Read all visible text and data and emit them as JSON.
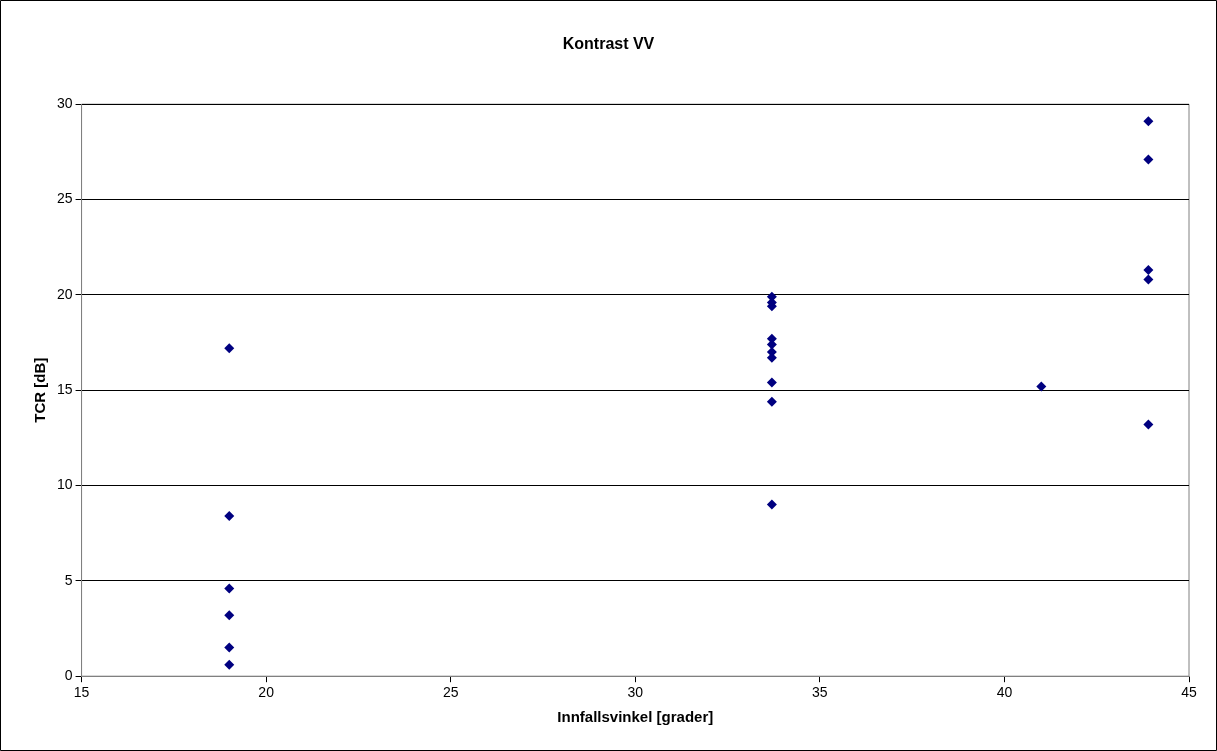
{
  "chart_data": {
    "type": "scatter",
    "title": "Kontrast VV",
    "xlabel": "Innfallsvinkel [grader]",
    "ylabel": "TCR [dB]",
    "x": [
      19,
      19,
      19,
      19,
      19,
      19,
      33.7,
      33.7,
      33.7,
      33.7,
      33.7,
      33.7,
      33.7,
      33.7,
      33.7,
      33.7,
      41,
      43.9,
      43.9,
      43.9,
      43.9,
      43.9
    ],
    "values": [
      17.2,
      8.4,
      4.6,
      3.2,
      1.5,
      0.6,
      19.9,
      19.6,
      19.4,
      17.7,
      17.4,
      17,
      16.7,
      15.4,
      14.4,
      9,
      15.2,
      29.1,
      27.1,
      21.3,
      20.8,
      13.2
    ],
    "color": "#000080",
    "marker": "diamond",
    "grid": "y",
    "legend": false,
    "xlim": [
      15,
      45
    ],
    "xticks": [
      15,
      20,
      25,
      30,
      35,
      40,
      45
    ],
    "ylim": [
      0,
      30
    ],
    "yticks": [
      0,
      5,
      10,
      15,
      20,
      25,
      30
    ]
  }
}
